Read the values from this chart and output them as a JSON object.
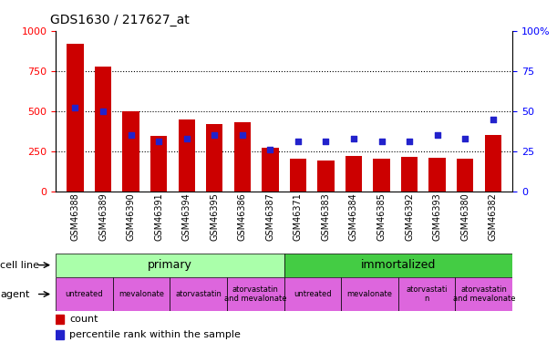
{
  "title": "GDS1630 / 217627_at",
  "samples": [
    "GSM46388",
    "GSM46389",
    "GSM46390",
    "GSM46391",
    "GSM46394",
    "GSM46395",
    "GSM46386",
    "GSM46387",
    "GSM46371",
    "GSM46383",
    "GSM46384",
    "GSM46385",
    "GSM46392",
    "GSM46393",
    "GSM46380",
    "GSM46382"
  ],
  "counts": [
    920,
    780,
    500,
    345,
    450,
    420,
    430,
    275,
    205,
    195,
    220,
    205,
    215,
    210,
    205,
    350
  ],
  "percentile_ranks": [
    52,
    50,
    35,
    31,
    33,
    35,
    35,
    26,
    31,
    31,
    33,
    31,
    31,
    35,
    33,
    45
  ],
  "bar_color": "#CC0000",
  "dot_color": "#2222CC",
  "ylim_left": [
    0,
    1000
  ],
  "yticks_left": [
    0,
    250,
    500,
    750,
    1000
  ],
  "ytick_labels_left": [
    "0",
    "250",
    "500",
    "750",
    "1000"
  ],
  "ytick_labels_right": [
    "0",
    "25",
    "50",
    "75",
    "100%"
  ],
  "primary_color": "#AAFFAA",
  "immortalized_color": "#44CC44",
  "agent_color": "#DD66DD",
  "legend_count_label": "count",
  "legend_pct_label": "percentile rank within the sample",
  "fig_width": 6.11,
  "fig_height": 3.75,
  "dpi": 100
}
